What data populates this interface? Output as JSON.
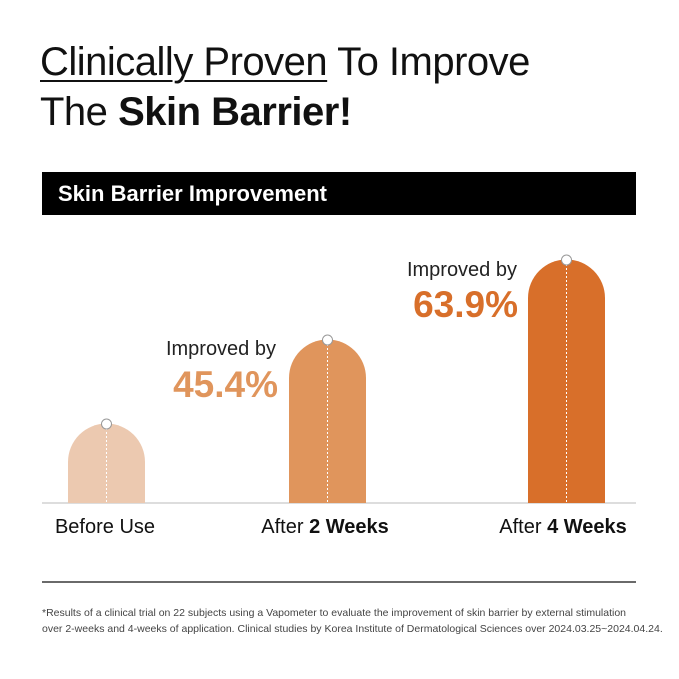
{
  "header": {
    "line1": [
      "Clinically Proven",
      "To Improve"
    ],
    "line2": [
      "The",
      "Skin Barrier!"
    ]
  },
  "banner": {
    "title": "Skin Barrier Improvement"
  },
  "stages": [
    {
      "label": "Before Use"
    },
    {
      "label_prefix": "After",
      "label_bold": "2 Weeks",
      "note": "Improved by",
      "result": "45.4%"
    },
    {
      "label_prefix": "After",
      "label_bold": "4 Weeks",
      "note": "Improved by",
      "result": "63.9%"
    }
  ],
  "footnote": {
    "lines": [
      "*Results of a clinical trial on 22 subjects using a Vapometer to evaluate the improvement of skin barrier by external stimulation",
      "over 2-weeks and 4-weeks of application. Clinical studies by Korea Institute of Dermatological Sciences over 2024.03.25~2024.04.24."
    ]
  }
}
